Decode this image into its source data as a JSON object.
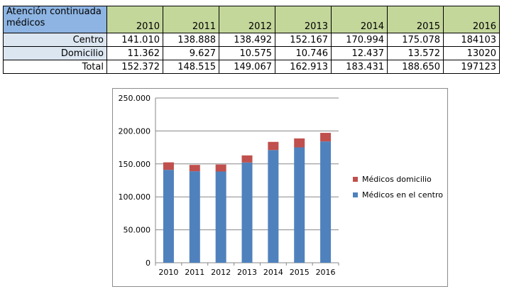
{
  "table": {
    "header_label": "Atención continuada médicos",
    "years": [
      "2010",
      "2011",
      "2012",
      "2013",
      "2014",
      "2015",
      "2016"
    ],
    "rows": [
      {
        "label": "Centro",
        "values": [
          "141.010",
          "138.888",
          "138.492",
          "152.167",
          "170.994",
          "175.078",
          "184103"
        ]
      },
      {
        "label": "Domicilio",
        "values": [
          "11.362",
          "9.627",
          "10.575",
          "10.746",
          "12.437",
          "13.572",
          "13020"
        ]
      },
      {
        "label": "Total",
        "values": [
          "152.372",
          "148.515",
          "149.067",
          "162.913",
          "183.431",
          "188.650",
          "197123"
        ]
      }
    ]
  },
  "chart_data": {
    "type": "bar",
    "stacked": true,
    "categories": [
      "2010",
      "2011",
      "2012",
      "2013",
      "2014",
      "2015",
      "2016"
    ],
    "series": [
      {
        "name": "Médicos en el centro",
        "color": "#4f81bd",
        "values": [
          141010,
          138888,
          138492,
          152167,
          170994,
          175078,
          184103
        ]
      },
      {
        "name": "Médicos domicilio",
        "color": "#c0504d",
        "values": [
          11362,
          9627,
          10575,
          10746,
          12437,
          13572,
          13020
        ]
      }
    ],
    "ylim": [
      0,
      250000
    ],
    "yticks": [
      0,
      50000,
      100000,
      150000,
      200000,
      250000
    ],
    "ytick_labels": [
      "0",
      "50.000",
      "100.000",
      "150.000",
      "200.000",
      "250.000"
    ],
    "grid": true,
    "legend_position": "right"
  }
}
